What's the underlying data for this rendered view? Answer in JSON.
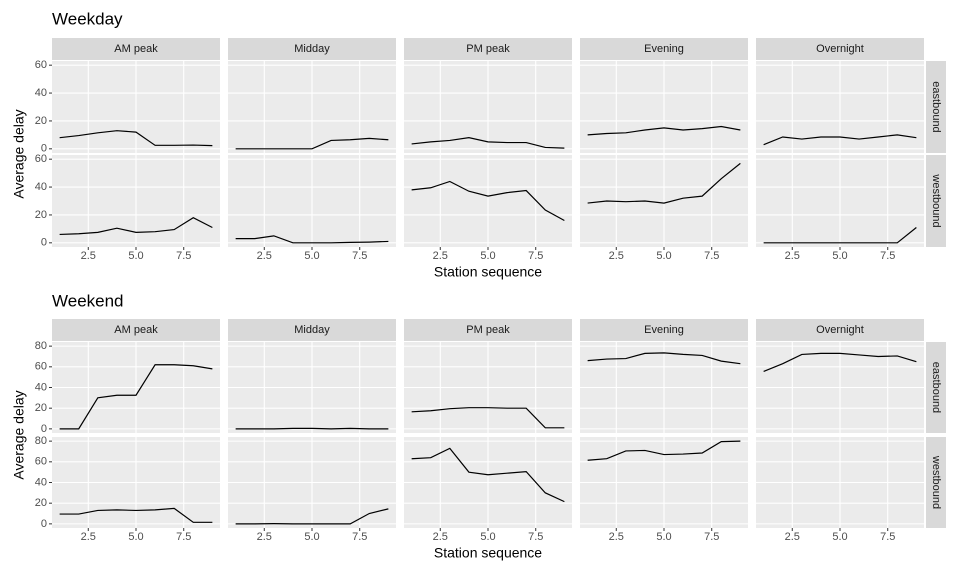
{
  "chart_data": [
    {
      "type": "line",
      "title": "Weekday",
      "xlabel": "Station sequence",
      "ylabel": "Average delay",
      "columns": [
        "AM peak",
        "Midday",
        "PM peak",
        "Evening",
        "Overnight"
      ],
      "rows": [
        "eastbound",
        "westbound"
      ],
      "x": [
        1,
        2,
        3,
        4,
        5,
        6,
        7,
        8,
        9
      ],
      "values": [
        [
          [
            8,
            9.5,
            11.5,
            13,
            12,
            2.5,
            2.5,
            2.7,
            2.3
          ],
          [
            0,
            0,
            0,
            0,
            0,
            6,
            6.5,
            7.5,
            6.5
          ],
          [
            3.5,
            5,
            6,
            8,
            5,
            4.5,
            4.5,
            1,
            0.5
          ],
          [
            10,
            11,
            11.5,
            13.5,
            15,
            13.5,
            14.5,
            16,
            13.5
          ],
          [
            3,
            8.5,
            7,
            8.5,
            8.5,
            7,
            8.5,
            10,
            8
          ]
        ],
        [
          [
            6,
            6.5,
            7.5,
            10.5,
            7.5,
            8,
            9.5,
            18,
            11
          ],
          [
            3,
            3,
            5,
            0,
            0,
            0,
            0.3,
            0.5,
            1
          ],
          [
            38,
            39.5,
            44,
            37,
            33.5,
            36,
            37.5,
            23.5,
            16
          ],
          [
            28.5,
            30,
            29.5,
            30,
            28.5,
            32,
            33.5,
            46,
            57
          ],
          [
            0,
            0,
            0,
            0,
            0,
            0,
            0,
            0,
            11
          ]
        ]
      ],
      "color": "#000000",
      "xlim": [
        0.6,
        9.4
      ],
      "xticks": [
        2.5,
        {
          "value": 5,
          "label": "5.0"
        },
        7.5
      ],
      "ylim": [
        -3,
        63
      ],
      "yticks": [
        0,
        20,
        40,
        60
      ],
      "grid": true
    },
    {
      "type": "line",
      "title": "Weekend",
      "xlabel": "Station sequence",
      "ylabel": "Average delay",
      "columns": [
        "AM peak",
        "Midday",
        "PM peak",
        "Evening",
        "Overnight"
      ],
      "rows": [
        "eastbound",
        "westbound"
      ],
      "x": [
        1,
        2,
        3,
        4,
        5,
        6,
        7,
        8,
        9
      ],
      "values": [
        [
          [
            0,
            0,
            30,
            32.5,
            32.5,
            62,
            62,
            61,
            58
          ],
          [
            0,
            0,
            0,
            0.5,
            0.5,
            0,
            0.5,
            0,
            0
          ],
          [
            16.5,
            17.5,
            19.5,
            20.5,
            20.5,
            20,
            20,
            1,
            1
          ],
          [
            66,
            67.5,
            68,
            73,
            73.5,
            72,
            71,
            65.5,
            63
          ],
          [
            55.5,
            63,
            72,
            73,
            73,
            71.5,
            70,
            70.5,
            65
          ]
        ],
        [
          [
            9.5,
            9.5,
            13,
            13.5,
            13,
            13.5,
            15,
            1.5,
            1.5
          ],
          [
            0,
            0,
            0.2,
            0,
            0,
            0,
            0,
            10,
            14.5
          ],
          [
            63,
            64,
            73,
            50,
            47.5,
            49,
            50.5,
            30,
            21.5
          ],
          [
            61.5,
            63,
            70.5,
            71,
            67,
            67.5,
            68.5,
            79.5,
            80
          ],
          [
            null,
            null,
            null,
            null,
            null,
            null,
            null,
            null,
            null
          ]
        ]
      ],
      "color": "#000000",
      "xlim": [
        0.6,
        9.4
      ],
      "xticks": [
        2.5,
        {
          "value": 5,
          "label": "5.0"
        },
        7.5
      ],
      "ylim": [
        -4,
        84
      ],
      "yticks": [
        0,
        20,
        40,
        60,
        80
      ],
      "grid": true
    }
  ]
}
